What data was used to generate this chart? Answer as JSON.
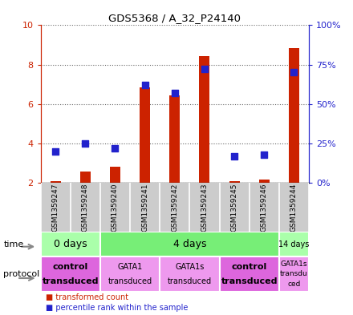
{
  "title": "GDS5368 / A_32_P24140",
  "samples": [
    "GSM1359247",
    "GSM1359248",
    "GSM1359240",
    "GSM1359241",
    "GSM1359242",
    "GSM1359243",
    "GSM1359245",
    "GSM1359246",
    "GSM1359244"
  ],
  "transformed_counts": [
    2.07,
    2.55,
    2.82,
    6.85,
    6.45,
    8.45,
    2.07,
    2.18,
    8.85
  ],
  "percentile_ranks": [
    20,
    25,
    22,
    62,
    57,
    72,
    17,
    18,
    70
  ],
  "ylim_left": [
    2,
    10
  ],
  "ylim_right": [
    0,
    100
  ],
  "yticks_left": [
    2,
    4,
    6,
    8,
    10
  ],
  "ytick_labels_left": [
    "2",
    "4",
    "6",
    "8",
    "10"
  ],
  "ytick_labels_right": [
    "0%",
    "25%",
    "50%",
    "75%",
    "100%"
  ],
  "bar_color": "#cc2200",
  "dot_color": "#2222cc",
  "bar_width": 0.35,
  "dot_size": 35,
  "time_groups": [
    {
      "label": "0 days",
      "start": 0,
      "end": 2,
      "color": "#aaffaa",
      "fontsize": 9,
      "bold": false
    },
    {
      "label": "4 days",
      "start": 2,
      "end": 8,
      "color": "#77ee77",
      "fontsize": 9,
      "bold": false
    },
    {
      "label": "14 days",
      "start": 8,
      "end": 9,
      "color": "#aaffaa",
      "fontsize": 7,
      "bold": false
    }
  ],
  "protocol_groups": [
    {
      "label": "control\ntransduced",
      "start": 0,
      "end": 2,
      "color": "#dd66dd",
      "bold": true,
      "fontsize": 8
    },
    {
      "label": "GATA1\ntransduced",
      "start": 2,
      "end": 4,
      "color": "#ee99ee",
      "bold": false,
      "fontsize": 7
    },
    {
      "label": "GATA1s\ntransduced",
      "start": 4,
      "end": 6,
      "color": "#ee99ee",
      "bold": false,
      "fontsize": 7
    },
    {
      "label": "control\ntransduced",
      "start": 6,
      "end": 8,
      "color": "#dd66dd",
      "bold": true,
      "fontsize": 8
    },
    {
      "label": "GATA1s\ntransdu\nced",
      "start": 8,
      "end": 9,
      "color": "#ee99ee",
      "bold": false,
      "fontsize": 6.5
    }
  ],
  "legend_items": [
    {
      "label": "transformed count",
      "color": "#cc2200"
    },
    {
      "label": "percentile rank within the sample",
      "color": "#2222cc"
    }
  ],
  "left_axis_color": "#cc2200",
  "right_axis_color": "#2222cc"
}
